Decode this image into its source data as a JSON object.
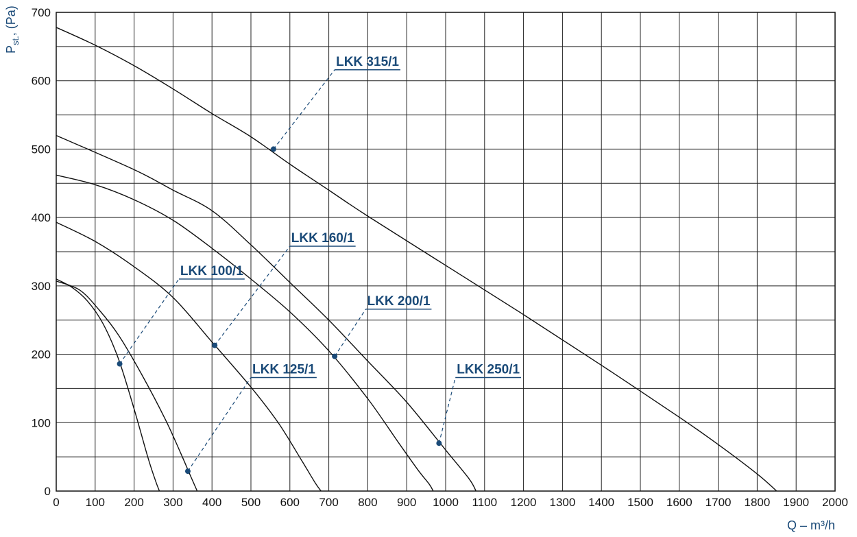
{
  "chart_data": {
    "type": "line",
    "xlabel": "Q – m³/h",
    "ylabel_main": "P",
    "ylabel_sub": "st.",
    "ylabel_rest": ", (Pa)",
    "xlim": [
      0,
      2000
    ],
    "ylim": [
      0,
      700
    ],
    "x_ticks": [
      0,
      100,
      200,
      300,
      400,
      500,
      600,
      700,
      800,
      900,
      1000,
      1100,
      1200,
      1300,
      1400,
      1500,
      1600,
      1700,
      1800,
      1900,
      2000
    ],
    "y_ticks": [
      0,
      100,
      200,
      300,
      400,
      500,
      600,
      700
    ],
    "grid": true,
    "accent_color": "#1a4a78",
    "series": [
      {
        "name": "LKK 100/1",
        "points": [
          [
            0,
            310
          ],
          [
            40,
            298
          ],
          [
            80,
            278
          ],
          [
            120,
            245
          ],
          [
            160,
            193
          ],
          [
            200,
            120
          ],
          [
            235,
            50
          ],
          [
            255,
            15
          ],
          [
            265,
            0
          ]
        ],
        "marker": [
          163,
          186
        ],
        "label_pos": [
          315,
          310
        ]
      },
      {
        "name": "LKK 125/1",
        "points": [
          [
            0,
            307
          ],
          [
            60,
            294
          ],
          [
            110,
            265
          ],
          [
            160,
            228
          ],
          [
            220,
            170
          ],
          [
            280,
            105
          ],
          [
            320,
            55
          ],
          [
            345,
            22
          ],
          [
            362,
            0
          ]
        ],
        "marker": [
          338,
          29
        ],
        "label_pos": [
          500,
          166
        ]
      },
      {
        "name": "LKK 160/1",
        "points": [
          [
            0,
            393
          ],
          [
            100,
            365
          ],
          [
            200,
            328
          ],
          [
            300,
            283
          ],
          [
            400,
            218
          ],
          [
            500,
            152
          ],
          [
            570,
            100
          ],
          [
            630,
            45
          ],
          [
            665,
            12
          ],
          [
            680,
            0
          ]
        ],
        "marker": [
          407,
          213
        ],
        "label_pos": [
          600,
          358
        ]
      },
      {
        "name": "LKK 200/1",
        "points": [
          [
            0,
            462
          ],
          [
            100,
            448
          ],
          [
            200,
            426
          ],
          [
            300,
            396
          ],
          [
            400,
            355
          ],
          [
            500,
            310
          ],
          [
            600,
            262
          ],
          [
            700,
            205
          ],
          [
            800,
            135
          ],
          [
            880,
            70
          ],
          [
            930,
            30
          ],
          [
            958,
            10
          ],
          [
            968,
            0
          ]
        ],
        "marker": [
          715,
          197
        ],
        "label_pos": [
          795,
          266
        ]
      },
      {
        "name": "LKK 250/1",
        "points": [
          [
            0,
            520
          ],
          [
            200,
            470
          ],
          [
            300,
            440
          ],
          [
            400,
            410
          ],
          [
            500,
            360
          ],
          [
            600,
            305
          ],
          [
            700,
            250
          ],
          [
            800,
            190
          ],
          [
            900,
            130
          ],
          [
            1000,
            60
          ],
          [
            1060,
            18
          ],
          [
            1078,
            0
          ]
        ],
        "marker": [
          983,
          70
        ],
        "label_pos": [
          1025,
          166
        ]
      },
      {
        "name": "LKK 315/1",
        "points": [
          [
            0,
            678
          ],
          [
            100,
            652
          ],
          [
            200,
            622
          ],
          [
            300,
            588
          ],
          [
            400,
            552
          ],
          [
            500,
            518
          ],
          [
            600,
            478
          ],
          [
            700,
            440
          ],
          [
            800,
            402
          ],
          [
            1000,
            330
          ],
          [
            1200,
            258
          ],
          [
            1400,
            184
          ],
          [
            1600,
            108
          ],
          [
            1700,
            68
          ],
          [
            1800,
            25
          ],
          [
            1850,
            0
          ]
        ],
        "marker": [
          558,
          500
        ],
        "label_pos": [
          715,
          616
        ]
      }
    ]
  }
}
